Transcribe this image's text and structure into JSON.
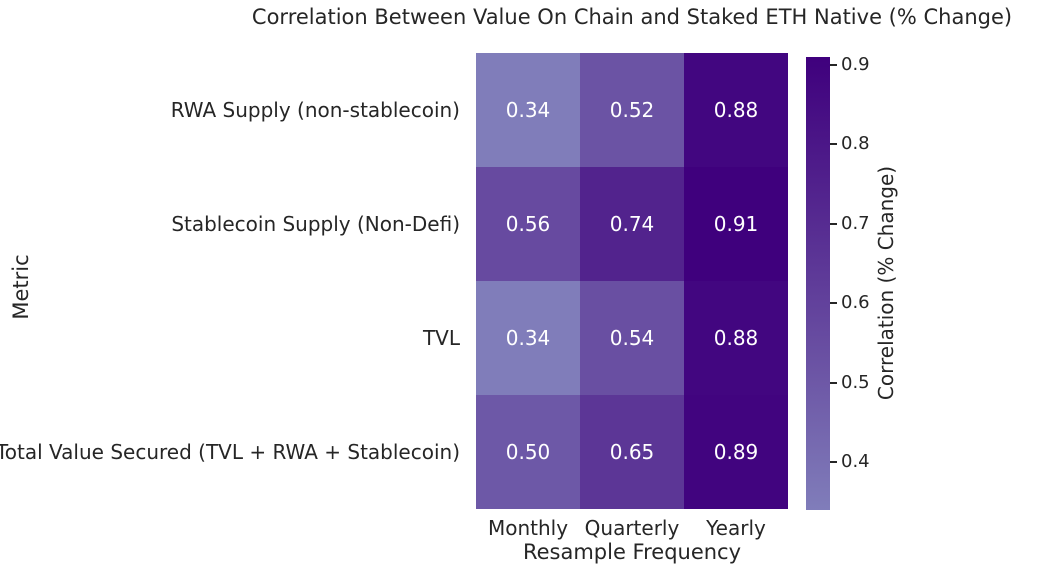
{
  "figure": {
    "background": "#ffffff",
    "text_color": "#262626"
  },
  "chart_data": {
    "type": "heatmap",
    "title": "Correlation Between Value On Chain and Staked ETH Native (% Change)",
    "xlabel": "Resample Frequency",
    "ylabel": "Metric",
    "x_categories": [
      "Monthly",
      "Quarterly",
      "Yearly"
    ],
    "y_categories": [
      "RWA Supply (non-stablecoin)",
      "Stablecoin Supply (Non-Defi)",
      "TVL",
      "Total Value Secured (TVL + RWA + Stablecoin)"
    ],
    "values": [
      [
        0.34,
        0.52,
        0.88
      ],
      [
        0.56,
        0.74,
        0.91
      ],
      [
        0.34,
        0.54,
        0.88
      ],
      [
        0.5,
        0.65,
        0.89
      ]
    ],
    "value_labels": [
      [
        "0.34",
        "0.52",
        "0.88"
      ],
      [
        "0.56",
        "0.74",
        "0.91"
      ],
      [
        "0.34",
        "0.54",
        "0.88"
      ],
      [
        "0.50",
        "0.65",
        "0.89"
      ]
    ],
    "annotation_text_color": "#ffffff",
    "grid": false,
    "legend": false,
    "colorbar": {
      "label": "Correlation (% Change)",
      "side": "right",
      "vmin": 0.34,
      "vmax": 0.91,
      "ticks": [
        0.9,
        0.8,
        0.7,
        0.6,
        0.5,
        0.4
      ],
      "tick_labels": [
        "0.9",
        "0.8",
        "0.7",
        "0.6",
        "0.5",
        "0.4"
      ]
    },
    "colormap": {
      "name": "purples-dark-segment",
      "stops_bottom_to_top": [
        "#807dba",
        "#6a51a3",
        "#54278f",
        "#3f007d"
      ]
    }
  }
}
